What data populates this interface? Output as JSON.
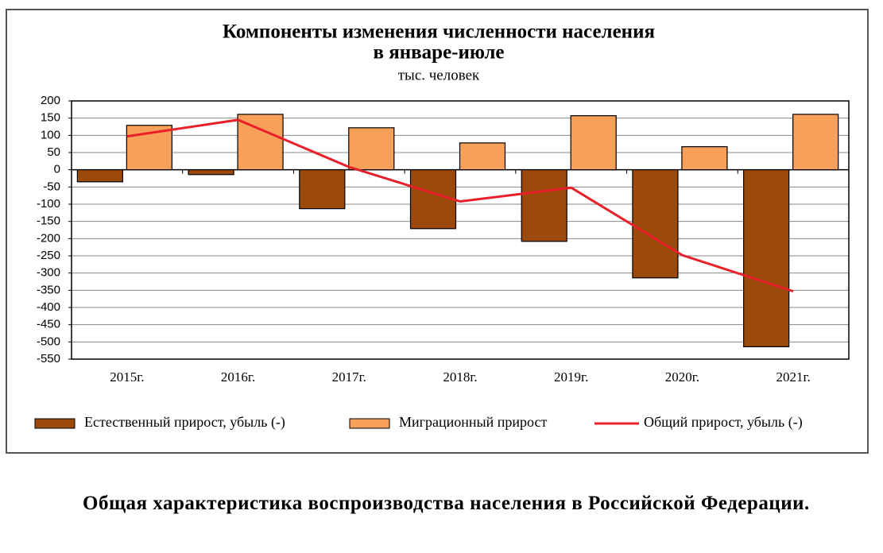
{
  "chart_data": {
    "type": "bar",
    "title": [
      "Компоненты изменения численности населения",
      "в январе-июле"
    ],
    "subtitle": "тыс. человек",
    "categories": [
      "2015г.",
      "2016г.",
      "2017г.",
      "2018г.",
      "2019г.",
      "2020г.",
      "2021г."
    ],
    "series": [
      {
        "name": "Естественный прирост, убыль (-)",
        "type": "bar",
        "color": "#9c4a0b",
        "values": [
          -35,
          -14,
          -113,
          -171,
          -208,
          -314,
          -514
        ]
      },
      {
        "name": "Миграционный прирост",
        "type": "bar",
        "color": "#f7a05a",
        "values": [
          129,
          161,
          122,
          78,
          157,
          67,
          161
        ]
      },
      {
        "name": "Общий прирост, убыль (-)",
        "type": "line",
        "color": "#e8202a",
        "values": [
          97,
          145,
          8,
          -92,
          -52,
          -248,
          -353
        ]
      }
    ],
    "ylim": [
      -550,
      200
    ],
    "yticks": [
      200,
      150,
      100,
      50,
      0,
      -50,
      -100,
      -150,
      -200,
      -250,
      -300,
      -350,
      -400,
      -450,
      -500,
      -550
    ],
    "grid": true,
    "legend": "bottom"
  },
  "document": {
    "paragraph": "Общая характеристика воспроизводства населения в Российской Федерации."
  }
}
